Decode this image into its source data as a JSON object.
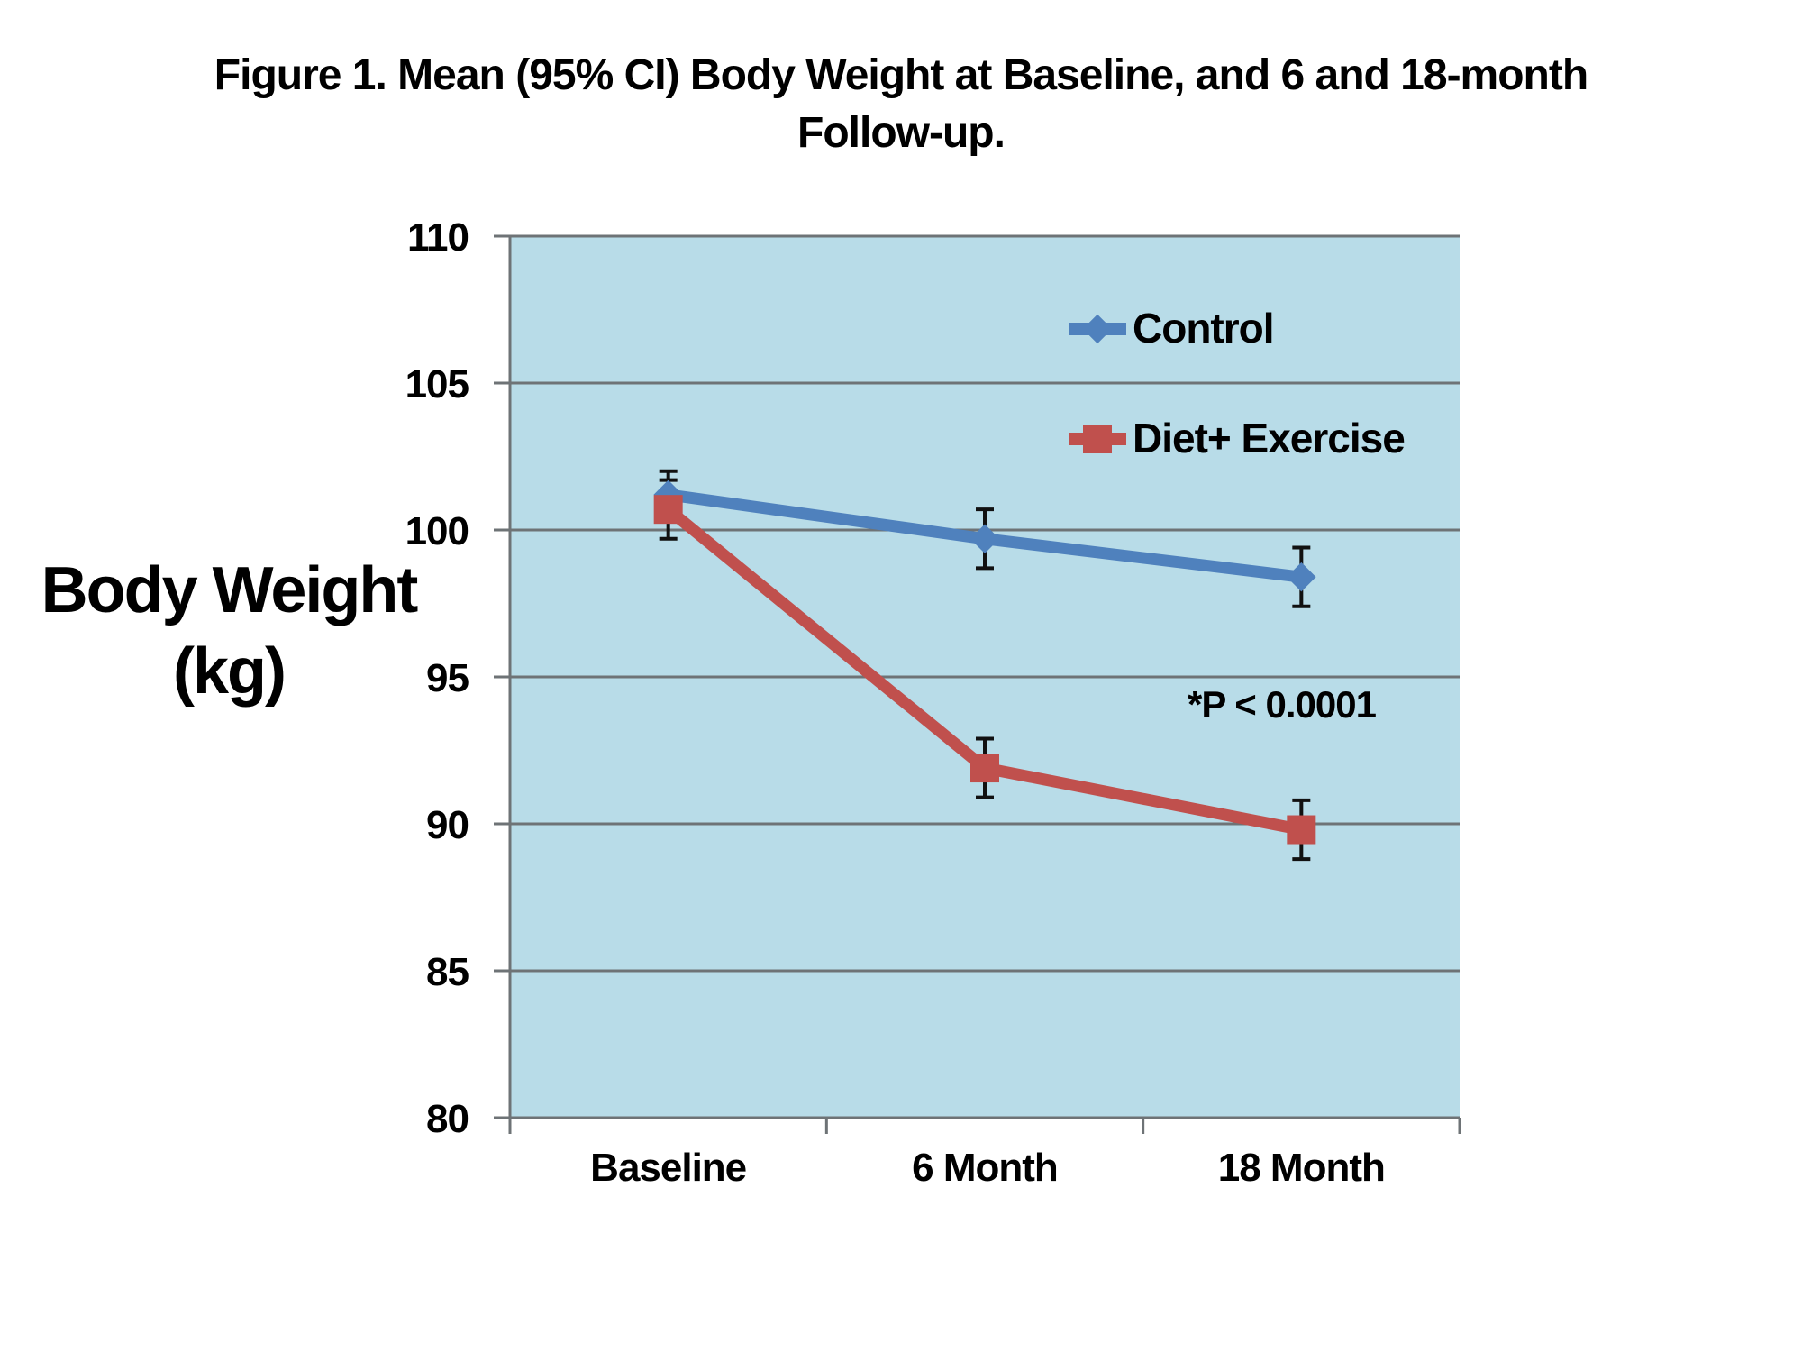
{
  "figure": {
    "title_line1": "Figure 1. Mean (95% CI) Body Weight at Baseline, and 6 and 18-month",
    "title_line2": "Follow-up.",
    "y_axis_title_line1": "Body Weight",
    "y_axis_title_line2": "(kg)",
    "annotation": "*P < 0.0001"
  },
  "colors": {
    "plot_bg": "#b8dce8",
    "gridline": "#6e7376",
    "axis": "#6e7376",
    "error_bar": "#111111",
    "control": "#4f81bd",
    "diet_exercise": "#c0504d",
    "text": "#000000"
  },
  "chart_data": {
    "type": "line",
    "title": "Figure 1. Mean (95% CI) Body Weight at Baseline, and 6 and 18-month Follow-up.",
    "ylabel": "Body Weight (kg)",
    "xlabel": "",
    "categories": [
      "Baseline",
      "6 Month",
      "18 Month"
    ],
    "series": [
      {
        "name": "Control",
        "marker": "diamond",
        "color": "#4f81bd",
        "values": [
          101.2,
          99.7,
          98.4
        ],
        "ci_95": [
          0.8,
          1.0,
          1.0
        ]
      },
      {
        "name": "Diet+ Exercise",
        "marker": "square",
        "color": "#c0504d",
        "values": [
          100.7,
          91.9,
          89.8
        ],
        "ci_95": [
          1.0,
          1.0,
          1.0
        ]
      }
    ],
    "yticks": [
      80,
      85,
      90,
      95,
      100,
      105,
      110
    ],
    "ylim": [
      80,
      110
    ],
    "ytick_step": 5,
    "grid": true,
    "error_bars": "95% CI",
    "legend_position": "inside-top-right",
    "annotation": "*P < 0.0001"
  }
}
